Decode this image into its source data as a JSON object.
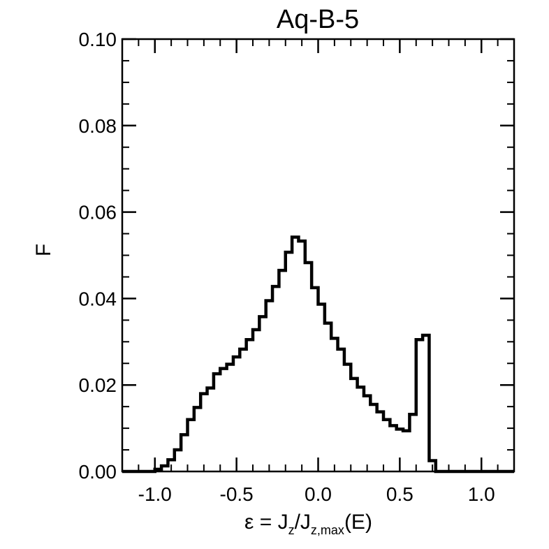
{
  "chart_data": {
    "type": "histogram",
    "title": "Aq-B-5",
    "ylabel": "F",
    "xlabel": {
      "prefix": "ε = ",
      "J1": "J",
      "sub1": "z",
      "slash": "/",
      "J2": "J",
      "sub2": "z,max",
      "suffix": "(E)"
    },
    "xlim": [
      -1.2,
      1.2
    ],
    "ylim": [
      0.0,
      0.1
    ],
    "x_ticks": [
      -1.0,
      -0.5,
      0.0,
      0.5,
      1.0
    ],
    "x_tick_labels": [
      "-1.0",
      "-0.5",
      "0.0",
      "0.5",
      "1.0"
    ],
    "y_ticks": [
      0.0,
      0.02,
      0.04,
      0.06,
      0.08,
      0.1
    ],
    "y_tick_labels": [
      "0.00",
      "0.02",
      "0.04",
      "0.06",
      "0.08",
      "0.10"
    ],
    "bin_width": 0.04,
    "bin_start": -1.2,
    "values": [
      0.0,
      0.0,
      0.0,
      0.0,
      0.0,
      0.0005,
      0.0013,
      0.0027,
      0.005,
      0.0085,
      0.012,
      0.0148,
      0.018,
      0.0193,
      0.0226,
      0.0238,
      0.0248,
      0.0265,
      0.0283,
      0.0305,
      0.0328,
      0.0358,
      0.0395,
      0.0428,
      0.0465,
      0.0507,
      0.0542,
      0.0533,
      0.0483,
      0.0425,
      0.0387,
      0.0343,
      0.0308,
      0.0283,
      0.0248,
      0.0215,
      0.0195,
      0.0175,
      0.0155,
      0.0138,
      0.012,
      0.0106,
      0.0098,
      0.0094,
      0.0132,
      0.0305,
      0.0315,
      0.0025,
      0.0,
      0.0,
      0.0,
      0.0,
      0.0,
      0.0,
      0.0,
      0.0,
      0.0,
      0.0,
      0.0,
      0.0
    ]
  }
}
